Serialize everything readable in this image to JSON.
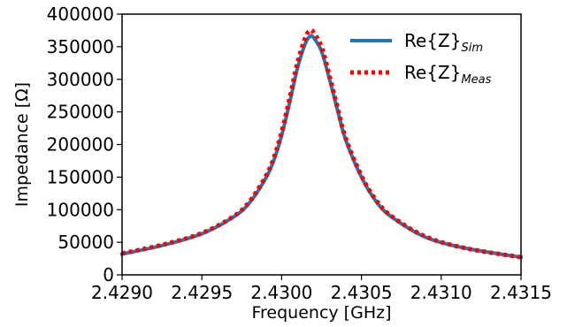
{
  "chart_data": {
    "type": "line",
    "xlabel": "Frequency [GHz]",
    "ylabel": "Impedance [Ω]",
    "xlim": [
      2.429,
      2.4315
    ],
    "ylim": [
      0,
      400000
    ],
    "xticks": [
      "2.4290",
      "2.4295",
      "2.4300",
      "2.4305",
      "2.4310",
      "2.4315"
    ],
    "yticks": [
      "0",
      "50000",
      "100000",
      "150000",
      "200000",
      "250000",
      "300000",
      "350000",
      "400000"
    ],
    "grid": false,
    "legend_position": "top-right",
    "series": [
      {
        "name": "Re{Z}",
        "name_subscript": "Sim",
        "style": "solid",
        "color": "#1f77b4",
        "x": [
          2.429,
          2.42925,
          2.4295,
          2.4297,
          2.4298,
          2.4299,
          2.42995,
          2.43,
          2.43005,
          2.4301,
          2.43015,
          2.43018,
          2.4302,
          2.43025,
          2.4303,
          2.43035,
          2.4304,
          2.4305,
          2.4306,
          2.4307,
          2.4309,
          2.43115,
          2.4315
        ],
        "values": [
          32000,
          45000,
          63000,
          89000,
          111000,
          148000,
          175000,
          214000,
          264000,
          318000,
          356000,
          366000,
          364000,
          343000,
          300000,
          253000,
          208000,
          150000,
          110000,
          87000,
          58000,
          41000,
          27000
        ]
      },
      {
        "name": "Re{Z}",
        "name_subscript": "Meas",
        "style": "dotted",
        "color": "#ff0000",
        "x": [
          2.429,
          2.42925,
          2.4295,
          2.4297,
          2.4298,
          2.4299,
          2.42995,
          2.43,
          2.43005,
          2.4301,
          2.43015,
          2.43018,
          2.4302,
          2.43025,
          2.4303,
          2.43035,
          2.4304,
          2.4305,
          2.4306,
          2.4307,
          2.4309,
          2.43115,
          2.4315
        ],
        "values": [
          33000,
          46000,
          64000,
          90000,
          113000,
          151000,
          179000,
          219000,
          271000,
          326000,
          365000,
          375000,
          372000,
          350000,
          305000,
          257000,
          211000,
          152000,
          112000,
          88000,
          59000,
          41000,
          27000
        ]
      }
    ]
  }
}
